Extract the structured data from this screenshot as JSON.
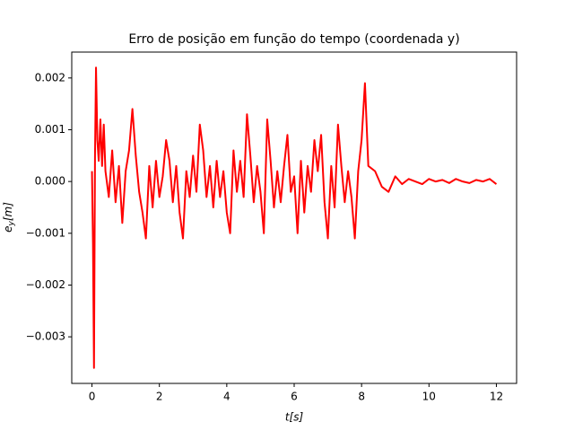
{
  "chart_data": {
    "type": "line",
    "title": "Erro de posição em função do tempo (coordenada y)",
    "xlabel": "t[s]",
    "ylabel": "e",
    "ylabel_sub": "y",
    "ylabel_rest": "[m]",
    "xlim": [
      -0.6,
      12.6
    ],
    "ylim": [
      -0.0039,
      0.0025
    ],
    "xticks": [
      0,
      2,
      4,
      6,
      8,
      10,
      12
    ],
    "yticks": [
      {
        "value": -0.003,
        "label": "−0.003"
      },
      {
        "value": -0.002,
        "label": "−0.002"
      },
      {
        "value": -0.001,
        "label": "−0.001"
      },
      {
        "value": 0,
        "label": "0.000"
      },
      0.001,
      0.002
    ],
    "x": [
      0,
      0.03,
      0.06,
      0.09,
      0.12,
      0.16,
      0.2,
      0.25,
      0.3,
      0.35,
      0.4,
      0.5,
      0.6,
      0.7,
      0.8,
      0.9,
      1.0,
      1.1,
      1.2,
      1.3,
      1.4,
      1.5,
      1.6,
      1.7,
      1.8,
      1.9,
      2.0,
      2.1,
      2.2,
      2.3,
      2.4,
      2.5,
      2.6,
      2.7,
      2.8,
      2.9,
      3.0,
      3.1,
      3.2,
      3.3,
      3.4,
      3.5,
      3.6,
      3.7,
      3.8,
      3.9,
      4.0,
      4.1,
      4.2,
      4.3,
      4.4,
      4.5,
      4.6,
      4.7,
      4.8,
      4.9,
      5.0,
      5.1,
      5.2,
      5.3,
      5.4,
      5.5,
      5.6,
      5.7,
      5.8,
      5.9,
      6.0,
      6.1,
      6.2,
      6.3,
      6.4,
      6.5,
      6.6,
      6.7,
      6.8,
      6.9,
      7.0,
      7.1,
      7.2,
      7.3,
      7.4,
      7.5,
      7.6,
      7.7,
      7.8,
      7.9,
      8.0,
      8.1,
      8.2,
      8.4,
      8.6,
      8.8,
      9.0,
      9.2,
      9.4,
      9.6,
      9.8,
      10.0,
      10.2,
      10.4,
      10.6,
      10.8,
      11.0,
      11.2,
      11.4,
      11.6,
      11.8,
      12.0
    ],
    "series": [
      {
        "color": "#ff0000",
        "values": [
          0.0002,
          -0.0012,
          -0.0036,
          0.0005,
          0.0022,
          0.0008,
          0.0004,
          0.0012,
          0.0003,
          0.0011,
          0.0002,
          -0.0003,
          0.0006,
          -0.0004,
          0.0003,
          -0.0008,
          0.0002,
          0.0006,
          0.0014,
          0.0005,
          -0.0002,
          -0.0006,
          -0.0011,
          0.0003,
          -0.0005,
          0.0004,
          -0.0003,
          0.0001,
          0.0008,
          0.0004,
          -0.0004,
          0.0003,
          -0.0006,
          -0.0011,
          0.0002,
          -0.0003,
          0.0005,
          -0.0002,
          0.0011,
          0.0006,
          -0.0003,
          0.0003,
          -0.0005,
          0.0004,
          -0.0003,
          0.0002,
          -0.0006,
          -0.001,
          0.0006,
          -0.0002,
          0.0004,
          -0.0003,
          0.0013,
          0.0005,
          -0.0004,
          0.0003,
          -0.0002,
          -0.001,
          0.0012,
          0.0004,
          -0.0005,
          0.0002,
          -0.0004,
          0.0003,
          0.0009,
          -0.0002,
          0.0001,
          -0.001,
          0.0004,
          -0.0006,
          0.0003,
          -0.0002,
          0.0008,
          0.0002,
          0.0009,
          -0.0004,
          -0.0011,
          0.0003,
          -0.0005,
          0.0011,
          0.0003,
          -0.0004,
          0.0002,
          -0.0003,
          -0.0011,
          0.0002,
          0.0008,
          0.0019,
          0.0003,
          0.0002,
          -0.0001,
          -0.0002,
          0.0001,
          -5e-05,
          5e-05,
          0,
          -5e-05,
          5e-05,
          0,
          3e-05,
          -3e-05,
          5e-05,
          0,
          -3e-05,
          3e-05,
          0,
          5e-05,
          -5e-05
        ]
      }
    ]
  }
}
